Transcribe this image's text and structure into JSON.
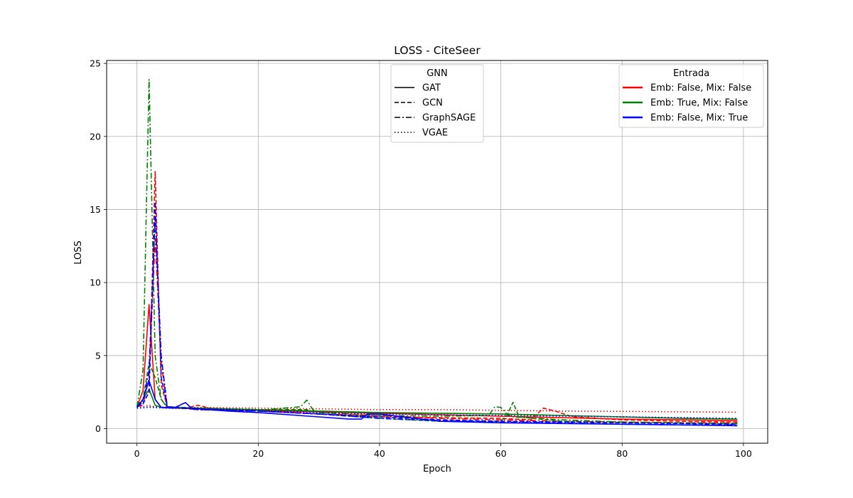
{
  "chart_data": {
    "type": "line",
    "title": "LOSS - CiteSeer",
    "xlabel": "Epoch",
    "ylabel": "LOSS",
    "xlim": [
      -5,
      104
    ],
    "ylim": [
      -1,
      25.2
    ],
    "xticks": [
      0,
      20,
      40,
      60,
      80,
      100
    ],
    "yticks": [
      0,
      5,
      10,
      15,
      20,
      25
    ],
    "grid": true,
    "legend_gnn": {
      "title": "GNN",
      "placement": "top-center",
      "entries": [
        {
          "label": "GAT",
          "style": "solid"
        },
        {
          "label": "GCN",
          "style": "dashed"
        },
        {
          "label": "GraphSAGE",
          "style": "dashdot"
        },
        {
          "label": "VGAE",
          "style": "dotted"
        }
      ]
    },
    "legend_input": {
      "title": "Entrada",
      "placement": "top-right",
      "entries": [
        {
          "label": "Emb: False, Mix: False",
          "color": "#ff0000"
        },
        {
          "label": "Emb: True, Mix: False",
          "color": "#008000"
        },
        {
          "label": "Emb: False, Mix: True",
          "color": "#0000ff"
        }
      ]
    },
    "series": [
      {
        "gnn": "GAT",
        "input": "Emb: False, Mix: False",
        "color": "#ff0000",
        "style": "solid",
        "points": [
          [
            0,
            1.5
          ],
          [
            1,
            2.6
          ],
          [
            2,
            8.5
          ],
          [
            3,
            2.0
          ],
          [
            4,
            1.45
          ],
          [
            6,
            1.4
          ],
          [
            8,
            1.38
          ],
          [
            10,
            1.35
          ],
          [
            15,
            1.3
          ],
          [
            20,
            1.25
          ],
          [
            30,
            1.15
          ],
          [
            40,
            1.05
          ],
          [
            50,
            0.95
          ],
          [
            60,
            0.85
          ],
          [
            70,
            0.75
          ],
          [
            80,
            0.65
          ],
          [
            90,
            0.6
          ],
          [
            99,
            0.55
          ]
        ]
      },
      {
        "gnn": "GCN",
        "input": "Emb: False, Mix: False",
        "color": "#ff0000",
        "style": "dashed",
        "points": [
          [
            0,
            1.5
          ],
          [
            1,
            1.7
          ],
          [
            2,
            2.5
          ],
          [
            3,
            17.6
          ],
          [
            4,
            3.0
          ],
          [
            5,
            1.5
          ],
          [
            8,
            1.38
          ],
          [
            10,
            1.6
          ],
          [
            12,
            1.4
          ],
          [
            20,
            1.25
          ],
          [
            30,
            1.0
          ],
          [
            40,
            0.8
          ],
          [
            50,
            0.75
          ],
          [
            60,
            0.7
          ],
          [
            65,
            0.6
          ],
          [
            67,
            1.4
          ],
          [
            69,
            1.2
          ],
          [
            70,
            1.05
          ],
          [
            72,
            0.8
          ],
          [
            80,
            0.6
          ],
          [
            90,
            0.5
          ],
          [
            99,
            0.45
          ]
        ]
      },
      {
        "gnn": "GraphSAGE",
        "input": "Emb: False, Mix: False",
        "color": "#ff0000",
        "style": "dashdot",
        "points": [
          [
            0,
            1.5
          ],
          [
            1,
            1.6
          ],
          [
            2,
            3.5
          ],
          [
            3,
            13.0
          ],
          [
            4,
            4.5
          ],
          [
            5,
            1.5
          ],
          [
            10,
            1.3
          ],
          [
            20,
            1.2
          ],
          [
            30,
            1.0
          ],
          [
            40,
            0.9
          ],
          [
            50,
            0.7
          ],
          [
            60,
            0.6
          ],
          [
            70,
            0.5
          ],
          [
            80,
            0.45
          ],
          [
            90,
            0.4
          ],
          [
            99,
            0.38
          ]
        ]
      },
      {
        "gnn": "VGAE",
        "input": "Emb: False, Mix: False",
        "color": "#ff0000",
        "style": "dotted",
        "points": [
          [
            0,
            1.45
          ],
          [
            1,
            1.5
          ],
          [
            2,
            1.6
          ],
          [
            3,
            1.48
          ],
          [
            10,
            1.45
          ],
          [
            20,
            1.4
          ],
          [
            30,
            1.35
          ],
          [
            40,
            1.3
          ],
          [
            50,
            1.3
          ],
          [
            60,
            1.25
          ],
          [
            70,
            1.2
          ],
          [
            80,
            1.18
          ],
          [
            90,
            1.15
          ],
          [
            99,
            1.12
          ]
        ]
      },
      {
        "gnn": "GAT",
        "input": "Emb: True, Mix: False",
        "color": "#008000",
        "style": "solid",
        "points": [
          [
            0,
            1.5
          ],
          [
            1,
            2.0
          ],
          [
            2,
            2.7
          ],
          [
            3,
            1.6
          ],
          [
            4,
            1.45
          ],
          [
            10,
            1.4
          ],
          [
            20,
            1.3
          ],
          [
            30,
            1.2
          ],
          [
            40,
            1.1
          ],
          [
            50,
            1.05
          ],
          [
            60,
            1.0
          ],
          [
            70,
            0.9
          ],
          [
            80,
            0.8
          ],
          [
            90,
            0.7
          ],
          [
            99,
            0.65
          ]
        ]
      },
      {
        "gnn": "GCN",
        "input": "Emb: True, Mix: False",
        "color": "#008000",
        "style": "dashed",
        "points": [
          [
            0,
            1.6
          ],
          [
            1,
            2.0
          ],
          [
            2,
            4.5
          ],
          [
            3,
            3.5
          ],
          [
            4,
            2.0
          ],
          [
            5,
            1.5
          ],
          [
            10,
            1.4
          ],
          [
            20,
            1.3
          ],
          [
            28,
            1.3
          ],
          [
            30,
            1.0
          ],
          [
            40,
            0.7
          ],
          [
            50,
            0.5
          ],
          [
            60,
            0.5
          ],
          [
            61,
            0.9
          ],
          [
            62,
            1.8
          ],
          [
            63,
            0.8
          ],
          [
            70,
            0.5
          ],
          [
            80,
            0.4
          ],
          [
            90,
            0.35
          ],
          [
            99,
            0.3
          ]
        ]
      },
      {
        "gnn": "GraphSAGE",
        "input": "Emb: True, Mix: False",
        "color": "#008000",
        "style": "dashdot",
        "points": [
          [
            0,
            1.5
          ],
          [
            1,
            4.0
          ],
          [
            2,
            23.9
          ],
          [
            3,
            5.0
          ],
          [
            4,
            2.0
          ],
          [
            5,
            1.45
          ],
          [
            10,
            1.35
          ],
          [
            20,
            1.25
          ],
          [
            27,
            1.5
          ],
          [
            28,
            1.95
          ],
          [
            29,
            1.3
          ],
          [
            30,
            1.1
          ],
          [
            40,
            0.9
          ],
          [
            50,
            0.85
          ],
          [
            58,
            0.9
          ],
          [
            59,
            1.5
          ],
          [
            60,
            1.45
          ],
          [
            61,
            1.0
          ],
          [
            62,
            0.8
          ],
          [
            70,
            0.6
          ],
          [
            80,
            0.45
          ],
          [
            90,
            0.4
          ],
          [
            99,
            0.35
          ]
        ]
      },
      {
        "gnn": "VGAE",
        "input": "Emb: True, Mix: False",
        "color": "#008000",
        "style": "dotted",
        "points": [
          [
            0,
            1.4
          ],
          [
            1,
            1.42
          ],
          [
            2,
            1.45
          ],
          [
            5,
            1.4
          ],
          [
            10,
            1.38
          ],
          [
            20,
            1.3
          ],
          [
            30,
            1.2
          ],
          [
            40,
            1.1
          ],
          [
            50,
            1.05
          ],
          [
            60,
            1.0
          ],
          [
            70,
            0.9
          ],
          [
            80,
            0.8
          ],
          [
            90,
            0.75
          ],
          [
            99,
            0.7
          ]
        ]
      },
      {
        "gnn": "GAT",
        "input": "Emb: False, Mix: True",
        "color": "#0000ff",
        "style": "solid",
        "points": [
          [
            0,
            1.45
          ],
          [
            1,
            2.0
          ],
          [
            2,
            3.3
          ],
          [
            3,
            2.0
          ],
          [
            4,
            1.45
          ],
          [
            6,
            1.4
          ],
          [
            8,
            1.78
          ],
          [
            9,
            1.4
          ],
          [
            10,
            1.35
          ],
          [
            15,
            1.2
          ],
          [
            20,
            1.1
          ],
          [
            30,
            0.8
          ],
          [
            35,
            0.65
          ],
          [
            37,
            0.65
          ],
          [
            38,
            1.0
          ],
          [
            40,
            1.0
          ],
          [
            50,
            0.5
          ],
          [
            60,
            0.4
          ],
          [
            70,
            0.35
          ],
          [
            80,
            0.3
          ],
          [
            90,
            0.25
          ],
          [
            99,
            0.2
          ]
        ]
      },
      {
        "gnn": "GCN",
        "input": "Emb: False, Mix: True",
        "color": "#0000ff",
        "style": "dashed",
        "points": [
          [
            0,
            1.5
          ],
          [
            1,
            1.7
          ],
          [
            2,
            2.5
          ],
          [
            3,
            15.5
          ],
          [
            4,
            3.5
          ],
          [
            5,
            1.5
          ],
          [
            10,
            1.35
          ],
          [
            20,
            1.2
          ],
          [
            30,
            1.0
          ],
          [
            40,
            0.8
          ],
          [
            50,
            0.6
          ],
          [
            60,
            0.5
          ],
          [
            70,
            0.45
          ],
          [
            80,
            0.4
          ],
          [
            90,
            0.35
          ],
          [
            99,
            0.3
          ]
        ]
      },
      {
        "gnn": "GraphSAGE",
        "input": "Emb: False, Mix: True",
        "color": "#0000ff",
        "style": "dashdot",
        "points": [
          [
            0,
            1.5
          ],
          [
            1,
            1.8
          ],
          [
            2,
            4.0
          ],
          [
            3,
            14.5
          ],
          [
            4,
            5.0
          ],
          [
            5,
            1.5
          ],
          [
            10,
            1.3
          ],
          [
            20,
            1.2
          ],
          [
            30,
            1.0
          ],
          [
            40,
            0.7
          ],
          [
            50,
            0.55
          ],
          [
            60,
            0.45
          ],
          [
            70,
            0.4
          ],
          [
            80,
            0.3
          ],
          [
            90,
            0.25
          ],
          [
            99,
            0.25
          ]
        ]
      },
      {
        "gnn": "VGAE",
        "input": "Emb: False, Mix: True",
        "color": "#0000ff",
        "style": "dotted",
        "points": [
          [
            0,
            1.4
          ],
          [
            1,
            1.42
          ],
          [
            2,
            1.5
          ],
          [
            5,
            1.4
          ],
          [
            10,
            1.38
          ],
          [
            20,
            1.25
          ],
          [
            30,
            1.1
          ],
          [
            40,
            1.0
          ],
          [
            50,
            0.95
          ],
          [
            60,
            0.9
          ],
          [
            70,
            0.85
          ],
          [
            80,
            0.8
          ],
          [
            90,
            0.75
          ],
          [
            99,
            0.7
          ]
        ]
      }
    ]
  }
}
